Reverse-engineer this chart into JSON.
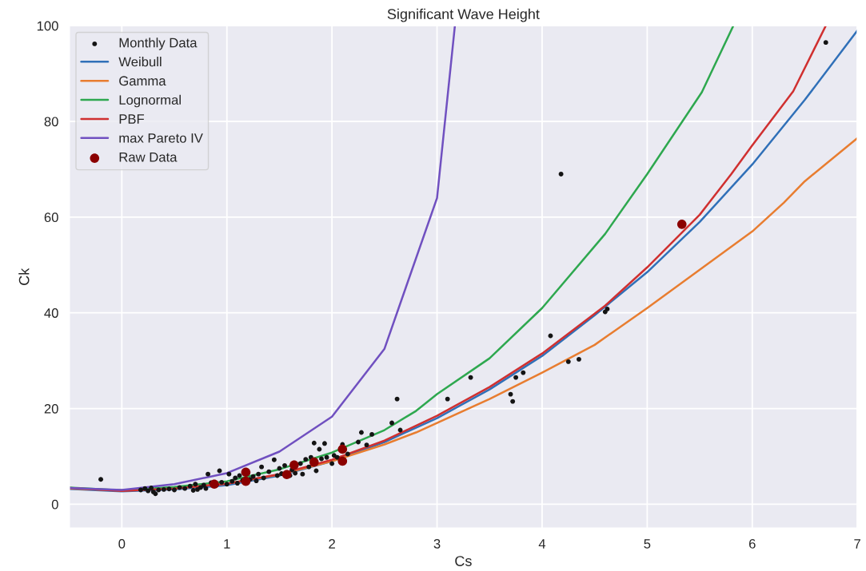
{
  "chart_data": {
    "type": "line",
    "title": "Significant Wave Height",
    "xlabel": "Cs",
    "ylabel": "Ck",
    "xlim": [
      -0.5,
      7
    ],
    "ylim": [
      -5,
      100
    ],
    "xticks": [
      0,
      1,
      2,
      3,
      4,
      5,
      6,
      7
    ],
    "yticks": [
      0,
      20,
      40,
      60,
      80,
      100
    ],
    "grid": true,
    "legend": "top left",
    "series": [
      {
        "name": "Monthly Data",
        "type": "scatter",
        "color": "#141414",
        "marker": "circle",
        "x": [
          -0.2,
          0.18,
          0.22,
          0.25,
          0.28,
          0.3,
          0.32,
          0.35,
          0.4,
          0.45,
          0.5,
          0.55,
          0.6,
          0.65,
          0.68,
          0.7,
          0.72,
          0.75,
          0.78,
          0.8,
          0.82,
          0.85,
          0.9,
          0.93,
          0.95,
          1.0,
          1.02,
          1.05,
          1.08,
          1.1,
          1.12,
          1.15,
          1.2,
          1.22,
          1.25,
          1.28,
          1.3,
          1.33,
          1.35,
          1.4,
          1.45,
          1.48,
          1.5,
          1.52,
          1.55,
          1.6,
          1.62,
          1.65,
          1.7,
          1.72,
          1.75,
          1.78,
          1.8,
          1.83,
          1.85,
          1.88,
          1.9,
          1.93,
          1.95,
          2.0,
          2.02,
          2.05,
          2.1,
          2.15,
          2.25,
          2.28,
          2.33,
          2.38,
          2.57,
          2.62,
          2.65,
          3.1,
          3.32,
          3.7,
          3.72,
          3.75,
          3.82,
          4.08,
          4.18,
          4.25,
          4.35,
          4.6,
          4.62,
          6.7
        ],
        "values": [
          5.2,
          3.0,
          3.3,
          2.8,
          3.4,
          2.6,
          2.2,
          3.0,
          3.1,
          3.2,
          3.0,
          3.5,
          3.3,
          3.8,
          2.9,
          4.2,
          3.1,
          3.5,
          4.0,
          3.3,
          6.3,
          4.5,
          4.0,
          7.0,
          4.6,
          4.2,
          6.3,
          4.8,
          5.5,
          4.4,
          6.0,
          5.0,
          6.5,
          5.2,
          5.8,
          4.9,
          6.3,
          7.8,
          5.5,
          6.8,
          9.3,
          6.0,
          7.5,
          6.4,
          8.1,
          6.0,
          7.2,
          6.5,
          8.5,
          6.3,
          9.4,
          7.8,
          9.8,
          12.8,
          7.0,
          11.5,
          9.5,
          12.7,
          9.8,
          8.5,
          10.2,
          9.8,
          12.5,
          10.5,
          13.0,
          15.0,
          12.4,
          14.6,
          17.0,
          22.0,
          15.5,
          22.0,
          26.5,
          23.0,
          21.5,
          26.5,
          27.5,
          35.2,
          69.0,
          29.8,
          30.3,
          40.2,
          40.8,
          96.5
        ]
      },
      {
        "name": "Weibull",
        "color": "#3070b8",
        "x": [
          -0.5,
          0,
          0.5,
          1,
          1.5,
          2,
          2.5,
          3,
          3.5,
          4,
          4.5,
          5,
          5.5,
          6,
          6.5,
          7
        ],
        "values": [
          3.2,
          2.7,
          3.1,
          4.0,
          6.0,
          9.0,
          13.0,
          18.0,
          24.0,
          31.0,
          39.5,
          48.5,
          59.0,
          71.0,
          84.5,
          99.0
        ]
      },
      {
        "name": "Gamma",
        "color": "#e87d30",
        "x": [
          -0.5,
          0,
          0.5,
          1,
          1.5,
          2,
          2.5,
          2.8,
          3,
          3.5,
          4,
          4.5,
          5,
          5.5,
          6,
          6.3,
          6.5,
          7
        ],
        "values": [
          3.3,
          2.9,
          3.3,
          4.3,
          6.2,
          9.0,
          12.5,
          15.0,
          17.0,
          22.0,
          27.5,
          33.3,
          41.0,
          49.0,
          57.0,
          63.0,
          67.5,
          76.5
        ]
      },
      {
        "name": "Lognormal",
        "color": "#2ea84f",
        "x": [
          -0.5,
          0,
          0.5,
          1,
          1.5,
          2,
          2.5,
          2.8,
          3,
          3.5,
          4,
          4.6,
          5,
          5.52,
          5.82
        ],
        "values": [
          3.5,
          2.9,
          3.6,
          4.8,
          7.3,
          10.8,
          15.5,
          19.5,
          23.0,
          30.5,
          41.0,
          56.5,
          69.0,
          86.1,
          100.0
        ]
      },
      {
        "name": "PBF",
        "color": "#d03030",
        "x": [
          -0.5,
          0,
          0.5,
          1,
          1.5,
          2,
          2.5,
          3,
          3.5,
          4,
          4.6,
          5,
          5.5,
          5.8,
          6,
          6.39,
          6.7
        ],
        "values": [
          3.4,
          2.8,
          3.3,
          4.3,
          6.3,
          9.3,
          13.3,
          18.5,
          24.5,
          31.5,
          41.5,
          49.5,
          60.5,
          69.0,
          75.0,
          86.3,
          100.0
        ]
      },
      {
        "name": "max Pareto IV",
        "color": "#7050c0",
        "x": [
          -0.5,
          0,
          0.5,
          1,
          1.5,
          2,
          2.5,
          3,
          3.17
        ],
        "values": [
          3.4,
          3.0,
          4.2,
          6.5,
          11.0,
          18.3,
          32.5,
          64.0,
          100.0
        ]
      },
      {
        "name": "Raw Data",
        "type": "scatter",
        "color": "#8b0000",
        "marker": "circle",
        "x": [
          0.88,
          1.18,
          1.18,
          1.57,
          1.64,
          1.83,
          2.1,
          2.1,
          5.33
        ],
        "values": [
          4.2,
          4.8,
          6.7,
          6.2,
          8.2,
          8.8,
          9.0,
          11.5,
          58.5
        ]
      }
    ]
  }
}
